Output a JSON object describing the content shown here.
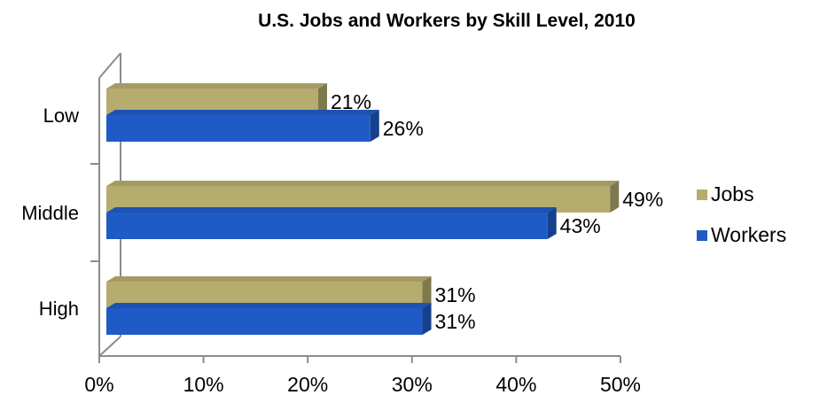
{
  "chart_data": {
    "type": "bar",
    "orientation": "horizontal",
    "style": "3d",
    "title": "U.S. Jobs and Workers by Skill Level, 2010",
    "xlabel": "",
    "ylabel": "",
    "categories": [
      "Low",
      "Middle",
      "High"
    ],
    "series": [
      {
        "name": "Jobs",
        "values": [
          21,
          49,
          31
        ],
        "color": "#b5ac6e",
        "value_labels": [
          "21%",
          "49%",
          "31%"
        ]
      },
      {
        "name": "Workers",
        "values": [
          26,
          43,
          31
        ],
        "color": "#1f5bc6",
        "value_labels": [
          "26%",
          "43%",
          "31%"
        ]
      }
    ],
    "xlim": [
      0,
      50
    ],
    "ticks": [
      0,
      10,
      20,
      30,
      40,
      50
    ],
    "tick_labels": [
      "0%",
      "10%",
      "20%",
      "30%",
      "40%",
      "50%"
    ],
    "grid": false,
    "legend_position": "right"
  }
}
